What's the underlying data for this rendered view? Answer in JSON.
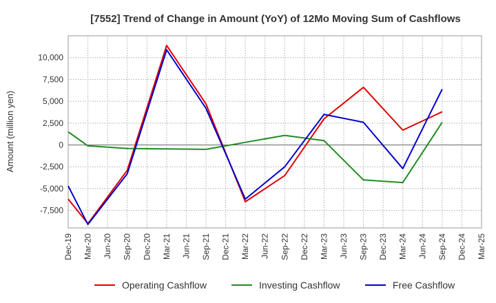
{
  "chart_data": {
    "type": "line",
    "title": "[7552]  Trend of Change in Amount (YoY) of 12Mo Moving Sum of Cashflows",
    "xlabel": "",
    "ylabel": "Amount (million yen)",
    "ylim": [
      -9500,
      12500
    ],
    "yticks": [
      -7500,
      -5000,
      -2500,
      0,
      2500,
      5000,
      7500,
      10000
    ],
    "ytick_labels": [
      "-7,500",
      "-5,000",
      "-2,500",
      "0",
      "2,500",
      "5,000",
      "7,500",
      "10,000"
    ],
    "categories": [
      "Dec-19",
      "Mar-20",
      "Jun-20",
      "Sep-20",
      "Dec-20",
      "Mar-21",
      "Jun-21",
      "Sep-21",
      "Dec-21",
      "Mar-22",
      "Jun-22",
      "Sep-22",
      "Dec-22",
      "Mar-23",
      "Jun-23",
      "Sep-23",
      "Dec-23",
      "Mar-24",
      "Jun-24",
      "Sep-24",
      "Dec-24",
      "Mar-25"
    ],
    "grid": true,
    "legend_position": "bottom",
    "series": [
      {
        "name": "Operating Cashflow",
        "color": "#e00000",
        "values": [
          -6200,
          -9000,
          null,
          -2900,
          null,
          11400,
          null,
          4700,
          null,
          -6500,
          null,
          -3500,
          null,
          3000,
          null,
          6600,
          null,
          1700,
          null,
          3800,
          null,
          null
        ]
      },
      {
        "name": "Investing Cashflow",
        "color": "#228b22",
        "values": [
          1500,
          -100,
          null,
          -400,
          null,
          -450,
          null,
          -500,
          null,
          300,
          null,
          1100,
          null,
          500,
          null,
          -4000,
          null,
          -4300,
          null,
          2600,
          null,
          null
        ]
      },
      {
        "name": "Free Cashflow",
        "color": "#0000cc",
        "values": [
          -4700,
          -9100,
          null,
          -3300,
          null,
          10900,
          null,
          4200,
          null,
          -6200,
          null,
          -2500,
          null,
          3500,
          null,
          2600,
          null,
          -2700,
          null,
          6400,
          null,
          null
        ]
      }
    ]
  }
}
